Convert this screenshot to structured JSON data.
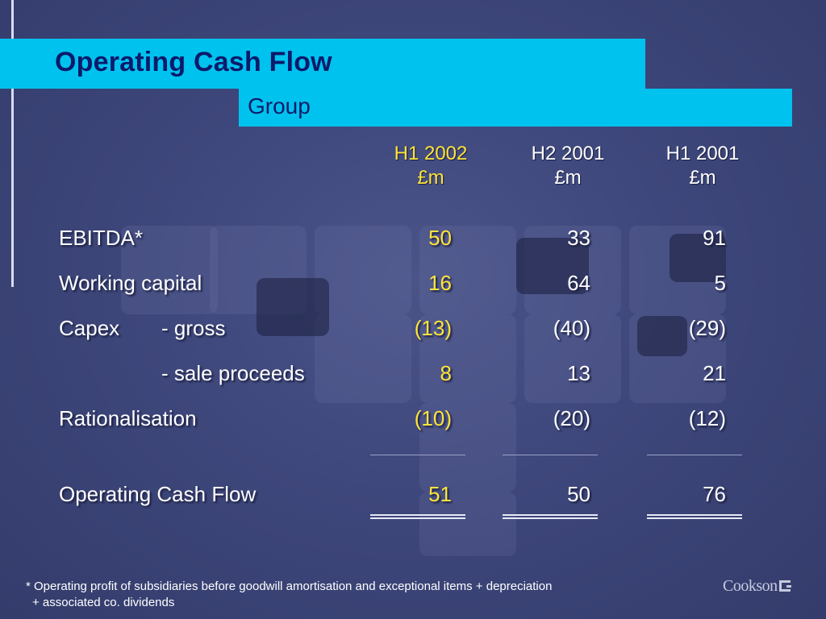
{
  "title": "Operating Cash Flow",
  "subtitle": "Group",
  "columns": [
    {
      "period": "H1 2002",
      "unit": "£m"
    },
    {
      "period": "H2 2001",
      "unit": "£m"
    },
    {
      "period": "H1 2001",
      "unit": "£m"
    }
  ],
  "rows": [
    {
      "label": "EBITDA*",
      "values": [
        "50",
        "33",
        "91"
      ]
    },
    {
      "label": "Working capital",
      "values": [
        "16",
        "64",
        "5"
      ]
    },
    {
      "label": "Capex",
      "sublabel": "- gross",
      "values": [
        "(13)",
        "(40)",
        "(29)"
      ]
    },
    {
      "label": "",
      "sublabel": "- sale proceeds",
      "values": [
        "8",
        "13",
        "21"
      ]
    },
    {
      "label": "Rationalisation",
      "values": [
        "(10)",
        "(20)",
        "(12)"
      ]
    }
  ],
  "total": {
    "label": "Operating Cash Flow",
    "values": [
      "51",
      "50",
      "76"
    ]
  },
  "footnote": {
    "line1": "* Operating profit of subsidiaries before goodwill amortisation and exceptional items + depreciation",
    "line2": "+ associated co. dividends"
  },
  "logo": {
    "text": "Cookson"
  },
  "colors": {
    "accent": "#00c2ee",
    "title_text": "#0b1a6a",
    "highlight": "#ffe43a",
    "background": "#3e477b"
  }
}
